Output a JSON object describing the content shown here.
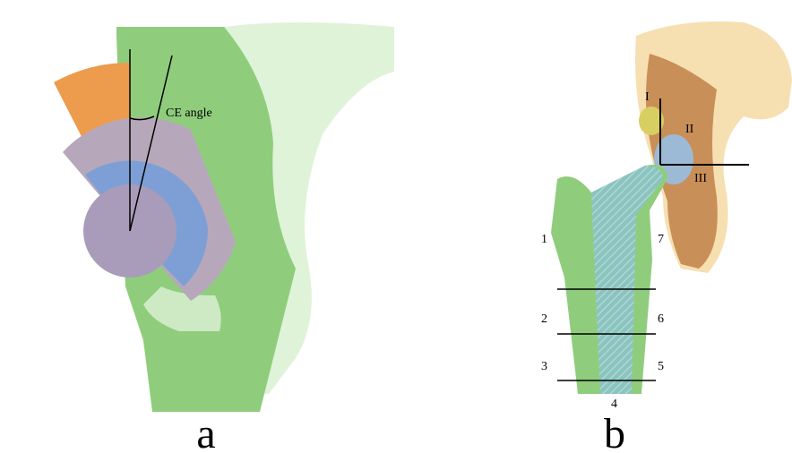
{
  "panel_a": {
    "annotation": "CE angle",
    "label": "a"
  },
  "panel_b": {
    "regions": [
      "I",
      "II",
      "III"
    ],
    "zones": [
      "1",
      "2",
      "3",
      "4",
      "5",
      "6",
      "7"
    ],
    "label": "b"
  }
}
